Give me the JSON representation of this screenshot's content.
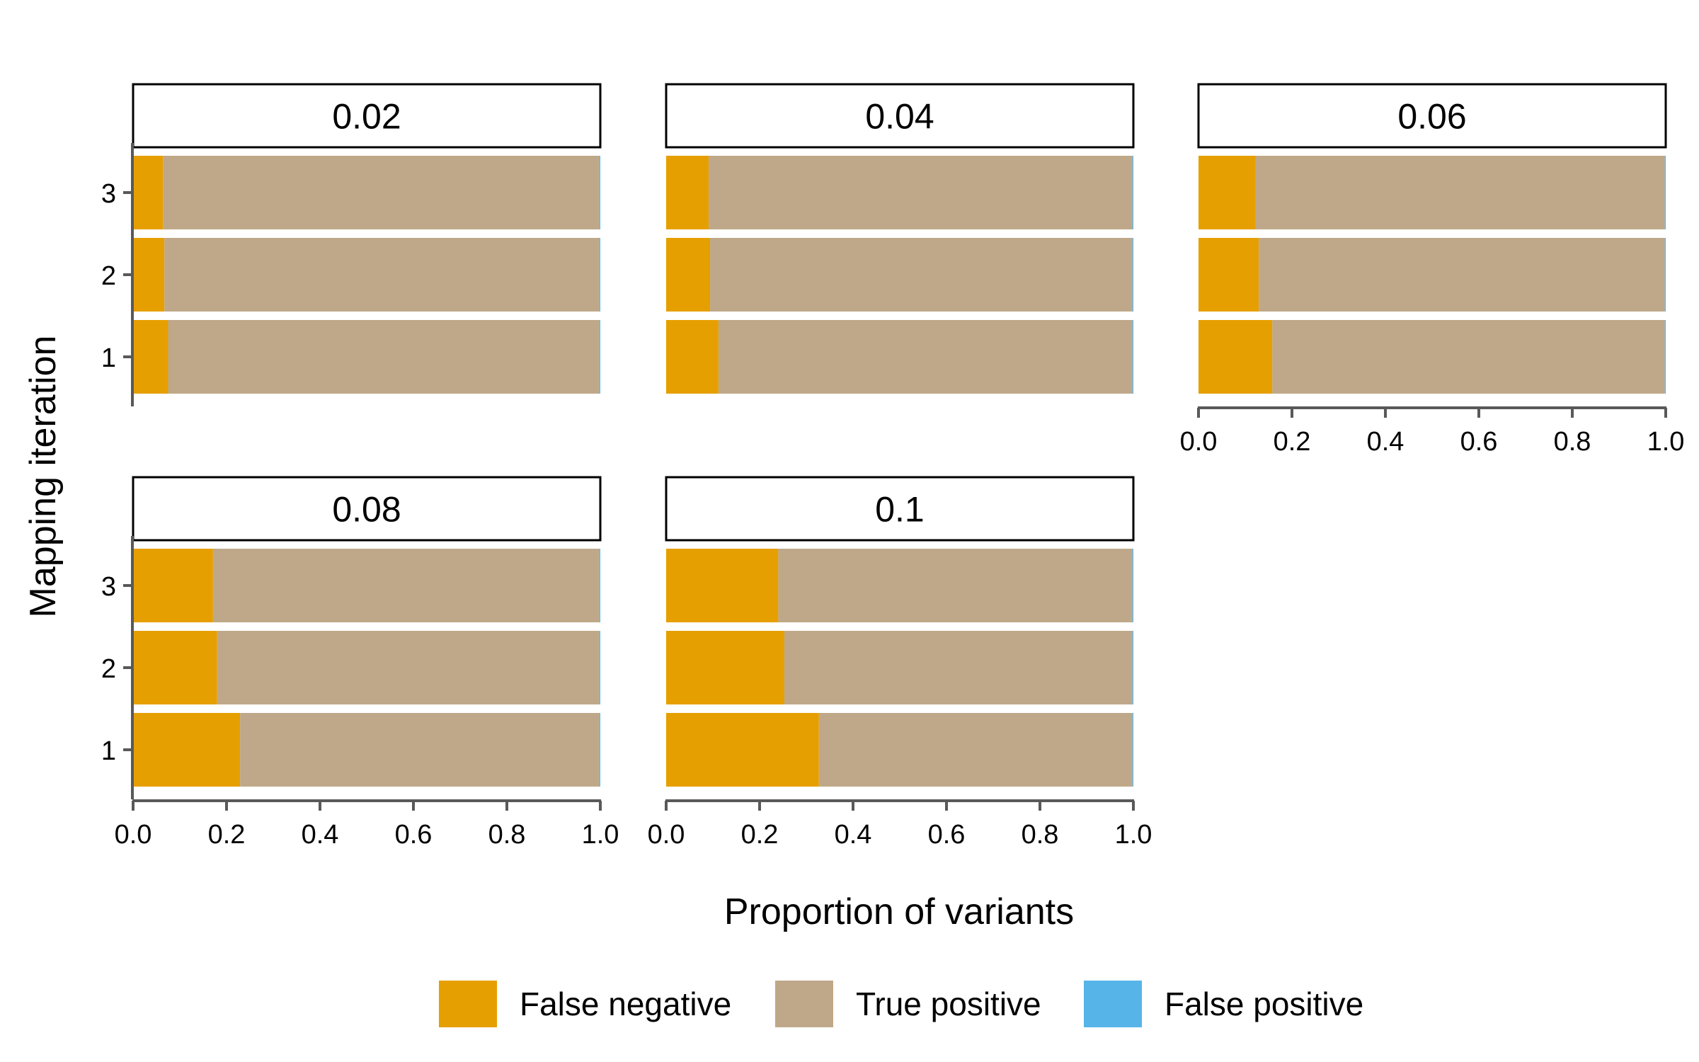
{
  "chart_data": {
    "type": "bar",
    "orientation": "horizontal",
    "stacked": true,
    "xlabel": "Proportion of variants",
    "ylabel": "Mapping iteration",
    "xlim": [
      0,
      1
    ],
    "x_ticks": [
      "0.0",
      "0.2",
      "0.4",
      "0.6",
      "0.8",
      "1.0"
    ],
    "categories": [
      "1",
      "2",
      "3"
    ],
    "legend": {
      "position": "bottom",
      "items": [
        {
          "name": "False negative",
          "color": "#E69F00"
        },
        {
          "name": "True positive",
          "color": "#BFA889"
        },
        {
          "name": "False positive",
          "color": "#56B4E9"
        }
      ]
    },
    "panels": [
      {
        "label": "0.02",
        "bars": [
          {
            "iteration": "1",
            "false_negative": 0.075,
            "true_positive": 0.923,
            "false_positive": 0.002
          },
          {
            "iteration": "2",
            "false_negative": 0.067,
            "true_positive": 0.931,
            "false_positive": 0.002
          },
          {
            "iteration": "3",
            "false_negative": 0.064,
            "true_positive": 0.934,
            "false_positive": 0.002
          }
        ]
      },
      {
        "label": "0.04",
        "bars": [
          {
            "iteration": "1",
            "false_negative": 0.112,
            "true_positive": 0.886,
            "false_positive": 0.002
          },
          {
            "iteration": "2",
            "false_negative": 0.094,
            "true_positive": 0.904,
            "false_positive": 0.002
          },
          {
            "iteration": "3",
            "false_negative": 0.091,
            "true_positive": 0.907,
            "false_positive": 0.002
          }
        ]
      },
      {
        "label": "0.06",
        "bars": [
          {
            "iteration": "1",
            "false_negative": 0.158,
            "true_positive": 0.84,
            "false_positive": 0.002
          },
          {
            "iteration": "2",
            "false_negative": 0.129,
            "true_positive": 0.869,
            "false_positive": 0.002
          },
          {
            "iteration": "3",
            "false_negative": 0.122,
            "true_positive": 0.876,
            "false_positive": 0.002
          }
        ]
      },
      {
        "label": "0.08",
        "bars": [
          {
            "iteration": "1",
            "false_negative": 0.229,
            "true_positive": 0.769,
            "false_positive": 0.002
          },
          {
            "iteration": "2",
            "false_negative": 0.18,
            "true_positive": 0.818,
            "false_positive": 0.002
          },
          {
            "iteration": "3",
            "false_negative": 0.171,
            "true_positive": 0.827,
            "false_positive": 0.002
          }
        ]
      },
      {
        "label": "0.1",
        "bars": [
          {
            "iteration": "1",
            "false_negative": 0.327,
            "true_positive": 0.671,
            "false_positive": 0.002
          },
          {
            "iteration": "2",
            "false_negative": 0.253,
            "true_positive": 0.745,
            "false_positive": 0.002
          },
          {
            "iteration": "3",
            "false_negative": 0.24,
            "true_positive": 0.758,
            "false_positive": 0.002
          }
        ]
      }
    ]
  }
}
